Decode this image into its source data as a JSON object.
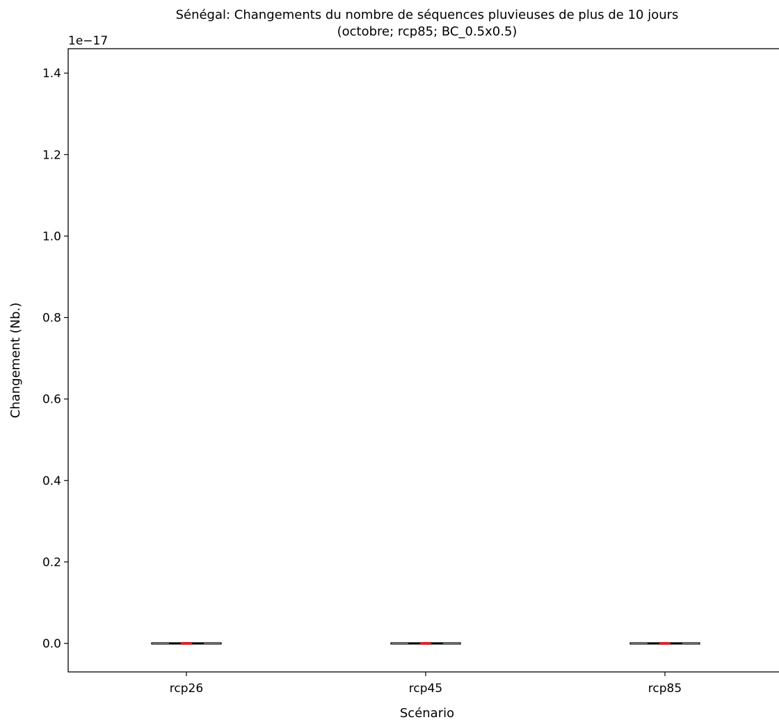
{
  "chart_data": {
    "type": "box",
    "title_line1": "Sénégal: Changements du nombre de séquences pluvieuses de plus de 10 jours",
    "title_line2": "(octobre; rcp85; BC_0.5x0.5)",
    "xlabel": "Scénario",
    "ylabel": "Changement (Nb.)",
    "y_offset_label": "1e−17",
    "ylim": [
      -0.07,
      1.46
    ],
    "yticks": [
      0.0,
      0.2,
      0.4,
      0.6,
      0.8,
      1.0,
      1.2,
      1.4
    ],
    "ytick_labels": [
      "0.0",
      "0.2",
      "0.4",
      "0.6",
      "0.8",
      "1.0",
      "1.2",
      "1.4"
    ],
    "categories": [
      "rcp26",
      "rcp45",
      "rcp85"
    ],
    "boxes": [
      {
        "name": "rcp26",
        "min": 0,
        "q1": 0,
        "median": 0,
        "q3": 0,
        "max": 0
      },
      {
        "name": "rcp45",
        "min": 0,
        "q1": 0,
        "median": 0,
        "q3": 0,
        "max": 0
      },
      {
        "name": "rcp85",
        "min": 0,
        "q1": 0,
        "median": 0,
        "q3": 0,
        "max": 0
      }
    ],
    "median_color": "#d62728",
    "box_color": "#000000",
    "grid": false
  }
}
